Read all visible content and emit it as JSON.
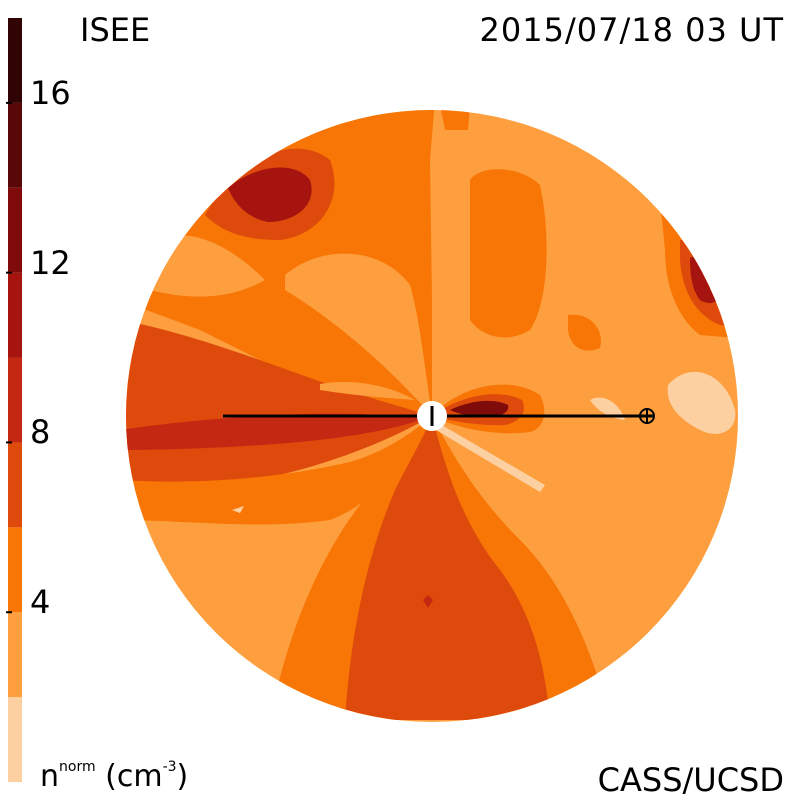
{
  "header": {
    "model": "ISEE",
    "timestamp": "2015/07/18 03 UT"
  },
  "footer": {
    "credit": "CASS/UCSD"
  },
  "colorbar": {
    "quantity": "n",
    "quantity_superscript": "norm",
    "unit_open": "(cm",
    "unit_superscript": "-3",
    "unit_close": ")",
    "ticks": [
      "4",
      "8",
      "12",
      "16"
    ],
    "levels": [
      {
        "from": 0,
        "to": 2,
        "color": "#fdd0a2"
      },
      {
        "from": 2,
        "to": 4,
        "color": "#fd9f3e"
      },
      {
        "from": 4,
        "to": 6,
        "color": "#f87606"
      },
      {
        "from": 6,
        "to": 8,
        "color": "#de4a0c"
      },
      {
        "from": 8,
        "to": 10,
        "color": "#c42812"
      },
      {
        "from": 10,
        "to": 12,
        "color": "#a5140f"
      },
      {
        "from": 12,
        "to": 14,
        "color": "#7f0b0b"
      },
      {
        "from": 14,
        "to": 16,
        "color": "#5a0707"
      },
      {
        "from": 16,
        "to": 18,
        "color": "#300404"
      }
    ]
  },
  "map": {
    "markers": [
      "sun",
      "earth"
    ]
  }
}
